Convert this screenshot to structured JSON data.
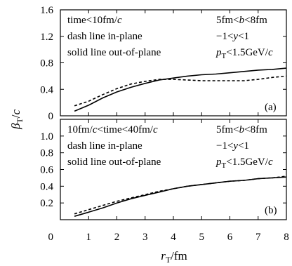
{
  "chart_data": [
    {
      "type": "line",
      "panel_tag": "(a)",
      "annotations": {
        "left": [
          "time<10fm/c",
          "dash line in-plane",
          "solid line out-of-plane"
        ],
        "right": [
          "5fm<b<8fm",
          "−1<y<1",
          "pT<1.5GeV/c"
        ]
      },
      "xlim": [
        0,
        8
      ],
      "ylim": [
        0,
        1.6
      ],
      "yticks": [
        "0",
        "0.4",
        "0.8",
        "1.2",
        "1.6"
      ],
      "series": [
        {
          "style": "dashed",
          "x": [
            0.5,
            1,
            1.5,
            2,
            2.5,
            3,
            3.5,
            4,
            4.5,
            5,
            5.5,
            6,
            6.5,
            7,
            7.5,
            8
          ],
          "y": [
            0.15,
            0.22,
            0.32,
            0.41,
            0.48,
            0.52,
            0.55,
            0.55,
            0.54,
            0.53,
            0.53,
            0.53,
            0.53,
            0.55,
            0.58,
            0.6
          ]
        },
        {
          "style": "solid",
          "x": [
            0.5,
            1,
            1.5,
            2,
            2.5,
            3,
            3.5,
            4,
            4.5,
            5,
            5.5,
            6,
            6.5,
            7,
            7.5,
            8
          ],
          "y": [
            0.07,
            0.16,
            0.27,
            0.36,
            0.43,
            0.49,
            0.54,
            0.57,
            0.6,
            0.62,
            0.63,
            0.65,
            0.67,
            0.69,
            0.7,
            0.72
          ]
        }
      ]
    },
    {
      "type": "line",
      "panel_tag": "(b)",
      "annotations": {
        "left": [
          "10fm/c<time<40fm/c",
          "dash line in-plane",
          "solid line out-of-plane"
        ],
        "right": [
          "5fm<b<8fm",
          "−1<y<1",
          "pT<1.5GeV/c"
        ]
      },
      "xlim": [
        0,
        8
      ],
      "ylim": [
        0,
        1.2
      ],
      "yticks": [
        "0.2",
        "0.4",
        "0.6",
        "0.8",
        "1.0"
      ],
      "series": [
        {
          "style": "dashed",
          "x": [
            0.5,
            1,
            1.5,
            2,
            2.5,
            3,
            3.5,
            4,
            4.5,
            5,
            5.5,
            6,
            6.5,
            7,
            7.5,
            8
          ],
          "y": [
            0.07,
            0.12,
            0.17,
            0.22,
            0.26,
            0.3,
            0.34,
            0.37,
            0.4,
            0.42,
            0.44,
            0.46,
            0.47,
            0.49,
            0.5,
            0.52
          ]
        },
        {
          "style": "solid",
          "x": [
            0.5,
            1,
            1.5,
            2,
            2.5,
            3,
            3.5,
            4,
            4.5,
            5,
            5.5,
            6,
            6.5,
            7,
            7.5,
            8
          ],
          "y": [
            0.04,
            0.09,
            0.14,
            0.2,
            0.25,
            0.29,
            0.33,
            0.37,
            0.4,
            0.42,
            0.44,
            0.46,
            0.47,
            0.49,
            0.5,
            0.51
          ]
        }
      ]
    }
  ],
  "shared_axes": {
    "xticks": [
      "0",
      "1",
      "2",
      "3",
      "4",
      "5",
      "6",
      "7",
      "8"
    ],
    "xlabel": "rT/fm",
    "ylabel": "βT/c"
  }
}
